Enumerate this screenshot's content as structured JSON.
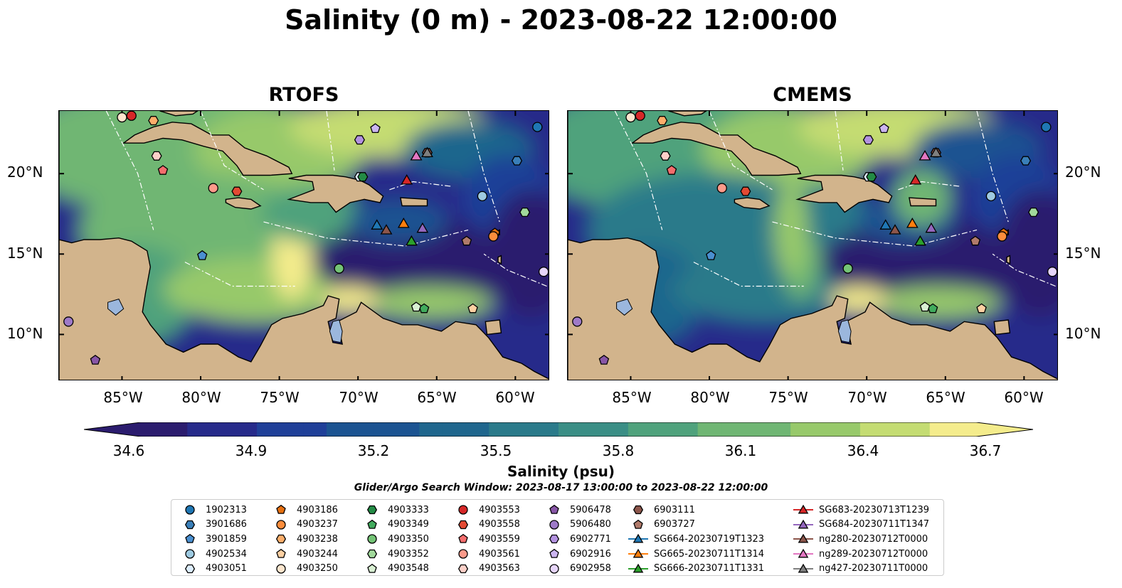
{
  "title": "Salinity (0 m) - 2023-08-22 12:00:00",
  "panels": [
    {
      "title": "RTOFS"
    },
    {
      "title": "CMEMS"
    }
  ],
  "lon_ticks": [
    "85°W",
    "80°W",
    "75°W",
    "70°W",
    "65°W",
    "60°W"
  ],
  "lat_ticks": [
    "20°N",
    "15°N",
    "10°N"
  ],
  "colorbar": {
    "label": "Salinity (psu)",
    "ticks": [
      "34.6",
      "34.9",
      "35.2",
      "35.5",
      "35.8",
      "36.1",
      "36.4",
      "36.7"
    ],
    "range": [
      34.6,
      36.7
    ],
    "colors": [
      "#2b1c6e",
      "#262a8a",
      "#1f3f98",
      "#1b5391",
      "#1f668d",
      "#2a7a8a",
      "#3a8e85",
      "#4fa27c",
      "#6fb673",
      "#97c96a",
      "#c4dc72",
      "#f4ec8c"
    ]
  },
  "search_window": "Glider/Argo Search Window: 2023-08-17 13:00:00 to 2023-08-22 12:00:00",
  "land_color": "#d2b48c",
  "legend": {
    "columns": [
      [
        {
          "label": "1902313",
          "marker": "circle",
          "color": "#1f77b4"
        },
        {
          "label": "3901686",
          "marker": "hexagon",
          "color": "#3a7fb8"
        },
        {
          "label": "3901859",
          "marker": "pentagon",
          "color": "#4a8fd0"
        },
        {
          "label": "4902534",
          "marker": "circle",
          "color": "#9ecae1"
        },
        {
          "label": "4903051",
          "marker": "hexagon",
          "color": "#ddeeff"
        }
      ],
      [
        {
          "label": "4903186",
          "marker": "pentagon",
          "color": "#e6700f"
        },
        {
          "label": "4903237",
          "marker": "circle",
          "color": "#fd8d3c"
        },
        {
          "label": "4903238",
          "marker": "hexagon",
          "color": "#fdae6b"
        },
        {
          "label": "4903244",
          "marker": "pentagon",
          "color": "#fdd0a2"
        },
        {
          "label": "4903250",
          "marker": "circle",
          "color": "#fee6ce"
        }
      ],
      [
        {
          "label": "4903333",
          "marker": "hexagon",
          "color": "#238b45"
        },
        {
          "label": "4903349",
          "marker": "pentagon",
          "color": "#41ab5d"
        },
        {
          "label": "4903350",
          "marker": "circle",
          "color": "#74c476"
        },
        {
          "label": "4903352",
          "marker": "hexagon",
          "color": "#a1d99b"
        },
        {
          "label": "4903548",
          "marker": "pentagon",
          "color": "#d9f0d3"
        }
      ],
      [
        {
          "label": "4903553",
          "marker": "circle",
          "color": "#d62728"
        },
        {
          "label": "4903558",
          "marker": "hexagon",
          "color": "#e34a33"
        },
        {
          "label": "4903559",
          "marker": "pentagon",
          "color": "#f46d6d"
        },
        {
          "label": "4903561",
          "marker": "circle",
          "color": "#fc9a8a"
        },
        {
          "label": "4903563",
          "marker": "hexagon",
          "color": "#fdd0c8"
        }
      ],
      [
        {
          "label": "5906478",
          "marker": "pentagon",
          "color": "#8856a7"
        },
        {
          "label": "5906480",
          "marker": "circle",
          "color": "#9e7ac8"
        },
        {
          "label": "6902771",
          "marker": "hexagon",
          "color": "#b392e0"
        },
        {
          "label": "6902916",
          "marker": "pentagon",
          "color": "#cbb5f0"
        },
        {
          "label": "6902958",
          "marker": "circle",
          "color": "#e6d5fa"
        }
      ],
      [
        {
          "label": "6903111",
          "marker": "hexagon",
          "color": "#8c564b"
        },
        {
          "label": "6903727",
          "marker": "pentagon",
          "color": "#b07a6a"
        },
        {
          "label": "SG664-20230719T1323",
          "marker": "triangle-line",
          "color": "#1f77b4"
        },
        {
          "label": "SG665-20230711T1314",
          "marker": "triangle-line",
          "color": "#ff7f0e"
        },
        {
          "label": "SG666-20230711T1331",
          "marker": "triangle-line",
          "color": "#2ca02c"
        }
      ],
      [
        {
          "label": "SG683-20230713T1239",
          "marker": "triangle-line",
          "color": "#d62728"
        },
        {
          "label": "SG684-20230711T1347",
          "marker": "triangle-line",
          "color": "#9467bd"
        },
        {
          "label": "ng280-20230712T0000",
          "marker": "triangle-line",
          "color": "#8c564b"
        },
        {
          "label": "ng289-20230712T0000",
          "marker": "triangle-line",
          "color": "#e377c2"
        },
        {
          "label": "ng427-20230711T0000",
          "marker": "triangle-line",
          "color": "#7f7f7f"
        }
      ]
    ]
  }
}
